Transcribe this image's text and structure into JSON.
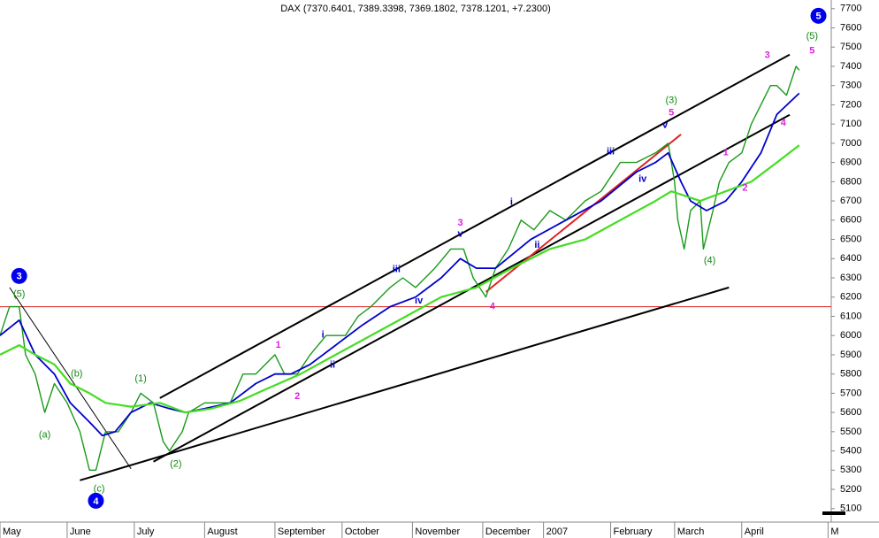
{
  "chart_data": {
    "type": "line",
    "title": "DAX (7370.6401, 7389.3398, 7369.1802, 7378.1201, +7.2300)",
    "xlim": [
      0,
      260
    ],
    "ylim": [
      5030,
      7745
    ],
    "xticks": [
      {
        "value": 0,
        "label": "May"
      },
      {
        "value": 21,
        "label": "June"
      },
      {
        "value": 42,
        "label": "July"
      },
      {
        "value": 64,
        "label": "August"
      },
      {
        "value": 86,
        "label": "September"
      },
      {
        "value": 107,
        "label": "October"
      },
      {
        "value": 129,
        "label": "November"
      },
      {
        "value": 151,
        "label": "December"
      },
      {
        "value": 170,
        "label": "2007"
      },
      {
        "value": 191,
        "label": "February"
      },
      {
        "value": 211,
        "label": "March"
      },
      {
        "value": 232,
        "label": "April"
      },
      {
        "value": 259,
        "label": "M"
      }
    ],
    "yticks": [
      5100,
      5200,
      5300,
      5400,
      5500,
      5600,
      5700,
      5800,
      5900,
      6000,
      6100,
      6200,
      6300,
      6400,
      6500,
      6600,
      6700,
      6800,
      6900,
      7000,
      7100,
      7200,
      7300,
      7400,
      7500,
      7600,
      7700
    ],
    "series": [
      {
        "color": "#1a9a1a",
        "width": 1.4,
        "x": [
          0,
          3,
          6,
          8,
          11,
          14,
          17,
          21,
          25,
          28,
          30,
          33,
          37,
          41,
          44,
          48,
          51,
          53,
          57,
          59,
          64,
          68,
          72,
          76,
          80,
          86,
          89,
          93,
          97,
          102,
          108,
          112,
          116,
          122,
          126,
          130,
          136,
          141,
          145,
          148,
          152,
          155,
          159,
          163,
          167,
          172,
          177,
          183,
          188,
          194,
          199,
          205,
          209,
          211,
          212,
          214,
          216,
          219,
          220,
          223,
          225,
          228,
          232,
          235,
          238,
          241,
          243,
          246,
          249,
          250
        ],
        "values": [
          6000,
          6150,
          6150,
          5900,
          5800,
          5600,
          5750,
          5650,
          5500,
          5300,
          5300,
          5500,
          5500,
          5600,
          5700,
          5650,
          5450,
          5400,
          5500,
          5600,
          5650,
          5650,
          5650,
          5800,
          5800,
          5900,
          5800,
          5800,
          5900,
          6000,
          6000,
          6100,
          6150,
          6250,
          6300,
          6250,
          6350,
          6450,
          6450,
          6300,
          6200,
          6350,
          6450,
          6600,
          6550,
          6650,
          6600,
          6700,
          6750,
          6900,
          6900,
          6950,
          7000,
          6800,
          6600,
          6450,
          6650,
          6700,
          6450,
          6650,
          6800,
          6900,
          6950,
          7100,
          7200,
          7300,
          7300,
          7250,
          7400,
          7380
        ]
      },
      {
        "color": "#0000cc",
        "width": 1.8,
        "x": [
          0,
          6,
          11,
          17,
          22,
          28,
          32,
          36,
          41,
          47,
          53,
          58,
          64,
          72,
          80,
          86,
          91,
          97,
          105,
          113,
          122,
          130,
          138,
          144,
          149,
          155,
          166,
          177,
          188,
          199,
          205,
          209,
          213,
          216,
          221,
          227,
          232,
          238,
          243,
          250
        ],
        "values": [
          6000,
          6080,
          5900,
          5800,
          5650,
          5550,
          5480,
          5500,
          5600,
          5650,
          5620,
          5600,
          5620,
          5650,
          5750,
          5800,
          5800,
          5850,
          5950,
          6050,
          6150,
          6200,
          6300,
          6400,
          6350,
          6350,
          6500,
          6600,
          6700,
          6850,
          6900,
          6950,
          6800,
          6700,
          6650,
          6700,
          6800,
          6950,
          7150,
          7260
        ]
      },
      {
        "color": "#44dd22",
        "width": 2.2,
        "x": [
          0,
          6,
          11,
          17,
          22,
          28,
          33,
          41,
          50,
          58,
          66,
          75,
          83,
          94,
          105,
          116,
          127,
          138,
          149,
          160,
          172,
          183,
          194,
          205,
          210,
          219,
          227,
          235,
          243,
          250
        ],
        "values": [
          5900,
          5950,
          5900,
          5850,
          5750,
          5700,
          5650,
          5630,
          5650,
          5600,
          5620,
          5660,
          5720,
          5800,
          5900,
          6000,
          6100,
          6200,
          6250,
          6350,
          6450,
          6500,
          6600,
          6700,
          6750,
          6700,
          6750,
          6800,
          6900,
          6990
        ]
      }
    ],
    "lines": [
      {
        "x": [
          3,
          41
        ],
        "y": [
          6250,
          5307
        ],
        "color": "#000000",
        "width": 1
      },
      {
        "x": [
          50,
          247
        ],
        "y": [
          5675,
          7461
        ],
        "color": "#000000",
        "width": 2
      },
      {
        "x": [
          48,
          247
        ],
        "y": [
          5344,
          7148
        ],
        "color": "#000000",
        "width": 2
      },
      {
        "x": [
          25,
          228
        ],
        "y": [
          5247,
          6250
        ],
        "color": "#000000",
        "width": 2
      },
      {
        "x": [
          152,
          213
        ],
        "y": [
          6227,
          7046
        ],
        "color": "#e02020",
        "width": 2
      }
    ],
    "hline": {
      "value": 6150,
      "color": "#e02020"
    },
    "annotations": [
      {
        "text": "3",
        "x": 6,
        "y": 6310,
        "color": "#0000ee",
        "style": "circle"
      },
      {
        "text": "(5)",
        "x": 6,
        "y": 6214,
        "color": "#118811"
      },
      {
        "text": "(b)",
        "x": 24,
        "y": 5800,
        "color": "#118811"
      },
      {
        "text": "(a)",
        "x": 14,
        "y": 5482,
        "color": "#118811"
      },
      {
        "text": "(c)",
        "x": 31,
        "y": 5201,
        "color": "#118811"
      },
      {
        "text": "4",
        "x": 30,
        "y": 5141,
        "color": "#0000ee",
        "style": "circle"
      },
      {
        "text": "(1)",
        "x": 44,
        "y": 5776,
        "color": "#118811"
      },
      {
        "text": "(2)",
        "x": 55,
        "y": 5330,
        "color": "#118811"
      },
      {
        "text": "1",
        "x": 87,
        "y": 5951,
        "color": "#dd22dd"
      },
      {
        "text": "2",
        "x": 93,
        "y": 5684,
        "color": "#dd22dd"
      },
      {
        "text": "i",
        "x": 101,
        "y": 6002,
        "color": "#0000cc"
      },
      {
        "text": "ii",
        "x": 104,
        "y": 5846,
        "color": "#0000cc"
      },
      {
        "text": "iii",
        "x": 124,
        "y": 6343,
        "color": "#0000cc"
      },
      {
        "text": "iv",
        "x": 131,
        "y": 6181,
        "color": "#0000cc"
      },
      {
        "text": "v",
        "x": 144,
        "y": 6527,
        "color": "#0000cc"
      },
      {
        "text": "3",
        "x": 144,
        "y": 6586,
        "color": "#dd22dd"
      },
      {
        "text": "4",
        "x": 154,
        "y": 6149,
        "color": "#dd22dd"
      },
      {
        "text": "i",
        "x": 160,
        "y": 6692,
        "color": "#0000cc"
      },
      {
        "text": "ii",
        "x": 168,
        "y": 6471,
        "color": "#0000cc"
      },
      {
        "text": "iii",
        "x": 191,
        "y": 6955,
        "color": "#0000cc"
      },
      {
        "text": "iv",
        "x": 201,
        "y": 6812,
        "color": "#0000cc"
      },
      {
        "text": "v",
        "x": 208,
        "y": 7093,
        "color": "#0000cc"
      },
      {
        "text": "(3)",
        "x": 210,
        "y": 7222,
        "color": "#118811"
      },
      {
        "text": "5",
        "x": 210,
        "y": 7157,
        "color": "#dd22dd"
      },
      {
        "text": "(4)",
        "x": 222,
        "y": 6389,
        "color": "#118811"
      },
      {
        "text": "1",
        "x": 227,
        "y": 6950,
        "color": "#dd22dd"
      },
      {
        "text": "2",
        "x": 233,
        "y": 6766,
        "color": "#dd22dd"
      },
      {
        "text": "3",
        "x": 240,
        "y": 7456,
        "color": "#dd22dd"
      },
      {
        "text": "4",
        "x": 245,
        "y": 7106,
        "color": "#dd22dd"
      },
      {
        "text": "5",
        "x": 254,
        "y": 7479,
        "color": "#dd22dd"
      },
      {
        "text": "(5)",
        "x": 254,
        "y": 7557,
        "color": "#118811"
      },
      {
        "text": "5",
        "x": 256,
        "y": 7663,
        "color": "#0000ee",
        "style": "circle"
      }
    ]
  }
}
